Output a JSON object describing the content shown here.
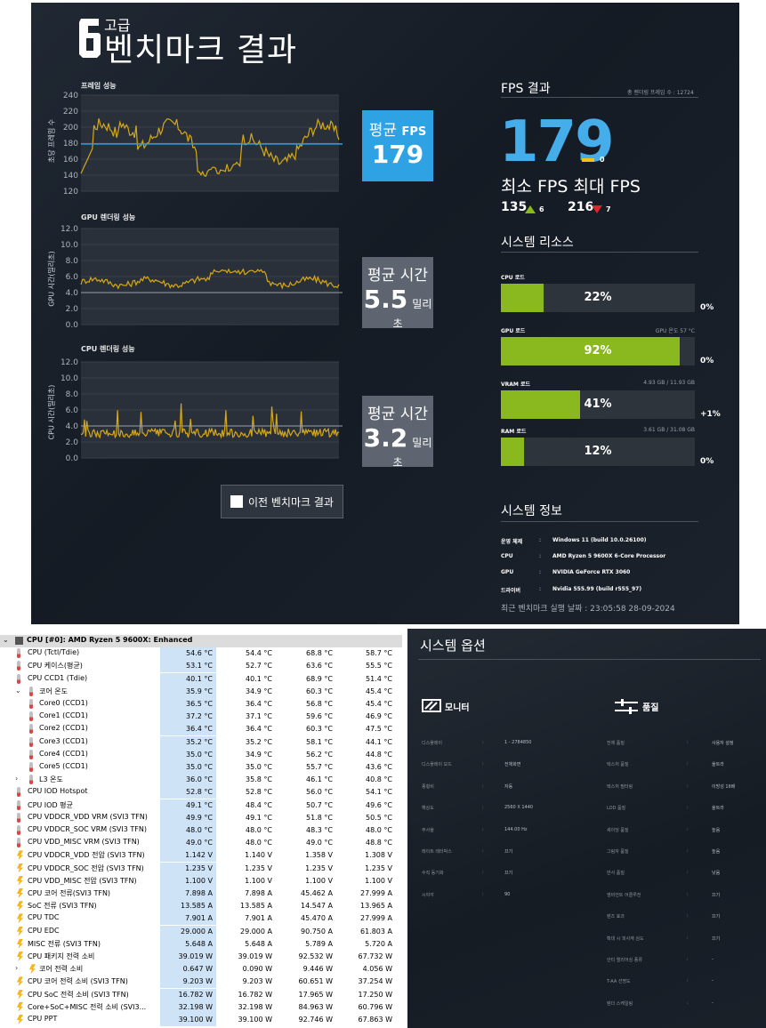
{
  "bench": {
    "tier": "고급",
    "title": "벤치마크 결과",
    "charts": [
      {
        "title": "프레임 성능",
        "ylabel": "초당 프레임 수",
        "ticks": [
          "240",
          "220",
          "200",
          "180",
          "160",
          "140",
          "120"
        ],
        "box_label": "평균",
        "box_label2": "FPS",
        "box_value": "179",
        "box_unit": ""
      },
      {
        "title": "GPU 렌더링 성능",
        "ylabel": "GPU 시간(밀리초)",
        "ticks": [
          "12.0",
          "10.0",
          "8.0",
          "6.0",
          "4.0",
          "2.0",
          "0.0"
        ],
        "box_label": "평균 시간",
        "box_label2": "",
        "box_value": "5.5",
        "box_unit": "밀리초"
      },
      {
        "title": "CPU 렌더링 성능",
        "ylabel": "CPU 시간(밀리초)",
        "ticks": [
          "12.0",
          "10.0",
          "8.0",
          "6.0",
          "4.0",
          "2.0",
          "0.0"
        ],
        "box_label": "평균 시간",
        "box_label2": "",
        "box_value": "3.2",
        "box_unit": "밀리초"
      }
    ],
    "legend": "이전 벤치마크 결과",
    "fps_section": {
      "title": "FPS 결과",
      "total_frames": "총 렌더링 프레임 수 : 12724",
      "avg": "179",
      "avg_delta": "0",
      "minmax_label": "최소 FPS 최대 FPS",
      "min": "135",
      "min_delta": "6",
      "max": "216",
      "max_delta": "7"
    },
    "resources_title": "시스템 리소스",
    "resources": [
      {
        "label": "CPU 로드",
        "extra": "",
        "percent": "22%",
        "fill": 0.22,
        "delta": "0%"
      },
      {
        "label": "GPU 로드",
        "extra": "GPU 온도 57 °C",
        "percent": "92%",
        "fill": 0.92,
        "delta": "0%"
      },
      {
        "label": "VRAM 로드",
        "extra": "4.93 GB / 11.93 GB",
        "percent": "41%",
        "fill": 0.41,
        "delta": "+1%"
      },
      {
        "label": "RAM 로드",
        "extra": "3.61 GB / 31.08 GB",
        "percent": "12%",
        "fill": 0.12,
        "delta": "0%"
      }
    ],
    "info_title": "시스템 정보",
    "info": [
      {
        "key": "운영 체제",
        "value": "Windows 11 (build 10.0.26100)"
      },
      {
        "key": "CPU",
        "value": "AMD Ryzen 5 9600X 6-Core Processor"
      },
      {
        "key": "GPU",
        "value": "NVIDIA GeForce RTX 3060"
      },
      {
        "key": "드라이버",
        "value": "Nvidia 555.99 (build r555_97)"
      }
    ],
    "colon": ":",
    "last_run": "최근 벤치마크 실행 날짜 : 23:05:58 28-09-2024",
    "colors": {
      "fps_blue": "#45aeea",
      "line_yellow": "#d6a817",
      "bar_green": "#8ab81f",
      "avg_line": "#2ba3e0"
    }
  },
  "sensors": {
    "rows": [
      {
        "tw": "⌄",
        "icon": "chip",
        "indent": 0,
        "name": "CPU [#0]: AMD Ryzen 5 9600X: Enhanced",
        "cur": "",
        "min": "",
        "max": "",
        "avg": "",
        "hdr": true
      },
      {
        "tw": "",
        "icon": "therm",
        "indent": 1,
        "name": "CPU (Tctl/Tdie)",
        "cur": "54.6 °C",
        "min": "54.4 °C",
        "max": "68.8 °C",
        "avg": "58.7 °C"
      },
      {
        "tw": "",
        "icon": "therm",
        "indent": 1,
        "name": "CPU 케이스(평균)",
        "cur": "53.1 °C",
        "min": "52.7 °C",
        "max": "63.6 °C",
        "avg": "55.5 °C"
      },
      {
        "tw": "",
        "icon": "therm",
        "indent": 1,
        "name": "CPU CCD1 (Tdie)",
        "cur": "40.1 °C",
        "min": "40.1 °C",
        "max": "68.9 °C",
        "avg": "51.4 °C"
      },
      {
        "tw": "⌄",
        "icon": "therm",
        "indent": 1,
        "name": "코어 온도",
        "cur": "35.9 °C",
        "min": "34.9 °C",
        "max": "60.3 °C",
        "avg": "45.4 °C"
      },
      {
        "tw": "",
        "icon": "therm",
        "indent": 2,
        "name": "Core0 (CCD1)",
        "cur": "36.5 °C",
        "min": "36.4 °C",
        "max": "56.8 °C",
        "avg": "45.4 °C"
      },
      {
        "tw": "",
        "icon": "therm",
        "indent": 2,
        "name": "Core1 (CCD1)",
        "cur": "37.2 °C",
        "min": "37.1 °C",
        "max": "59.6 °C",
        "avg": "46.9 °C"
      },
      {
        "tw": "",
        "icon": "therm",
        "indent": 2,
        "name": "Core2 (CCD1)",
        "cur": "36.4 °C",
        "min": "36.4 °C",
        "max": "60.3 °C",
        "avg": "47.5 °C"
      },
      {
        "tw": "",
        "icon": "therm",
        "indent": 2,
        "name": "Core3 (CCD1)",
        "cur": "35.2 °C",
        "min": "35.2 °C",
        "max": "58.1 °C",
        "avg": "44.1 °C"
      },
      {
        "tw": "",
        "icon": "therm",
        "indent": 2,
        "name": "Core4 (CCD1)",
        "cur": "35.0 °C",
        "min": "34.9 °C",
        "max": "56.2 °C",
        "avg": "44.8 °C"
      },
      {
        "tw": "",
        "icon": "therm",
        "indent": 2,
        "name": "Core5 (CCD1)",
        "cur": "35.0 °C",
        "min": "35.0 °C",
        "max": "55.7 °C",
        "avg": "43.6 °C"
      },
      {
        "tw": "›",
        "icon": "therm",
        "indent": 1,
        "name": "L3 온도",
        "cur": "36.0 °C",
        "min": "35.8 °C",
        "max": "46.1 °C",
        "avg": "40.8 °C"
      },
      {
        "tw": "",
        "icon": "therm",
        "indent": 1,
        "name": "CPU IOD Hotspot",
        "cur": "52.8 °C",
        "min": "52.8 °C",
        "max": "56.0 °C",
        "avg": "54.1 °C"
      },
      {
        "tw": "",
        "icon": "therm",
        "indent": 1,
        "name": "CPU IOD 평균",
        "cur": "49.1 °C",
        "min": "48.4 °C",
        "max": "50.7 °C",
        "avg": "49.6 °C"
      },
      {
        "tw": "",
        "icon": "therm",
        "indent": 1,
        "name": "CPU VDDCR_VDD VRM (SVI3 TFN)",
        "cur": "49.9 °C",
        "min": "49.1 °C",
        "max": "51.8 °C",
        "avg": "50.5 °C"
      },
      {
        "tw": "",
        "icon": "therm",
        "indent": 1,
        "name": "CPU VDDCR_SOC VRM (SVI3 TFN)",
        "cur": "48.0 °C",
        "min": "48.0 °C",
        "max": "48.3 °C",
        "avg": "48.0 °C"
      },
      {
        "tw": "",
        "icon": "therm",
        "indent": 1,
        "name": "CPU VDD_MISC VRM (SVI3 TFN)",
        "cur": "49.0 °C",
        "min": "48.0 °C",
        "max": "49.0 °C",
        "avg": "48.8 °C"
      },
      {
        "tw": "",
        "icon": "bolt",
        "indent": 1,
        "name": "CPU VDDCR_VDD 전압 (SVI3 TFN)",
        "cur": "1.142 V",
        "min": "1.140 V",
        "max": "1.358 V",
        "avg": "1.308 V"
      },
      {
        "tw": "",
        "icon": "bolt",
        "indent": 1,
        "name": "CPU VDDCR_SOC 전압 (SVI3 TFN)",
        "cur": "1.235 V",
        "min": "1.235 V",
        "max": "1.235 V",
        "avg": "1.235 V"
      },
      {
        "tw": "",
        "icon": "bolt",
        "indent": 1,
        "name": "CPU VDD_MISC 전압 (SVI3 TFN)",
        "cur": "1.100 V",
        "min": "1.100 V",
        "max": "1.100 V",
        "avg": "1.100 V"
      },
      {
        "tw": "",
        "icon": "bolt",
        "indent": 1,
        "name": "CPU 코어 전류(SVI3 TFN)",
        "cur": "7.898 A",
        "min": "7.898 A",
        "max": "45.462 A",
        "avg": "27.999 A"
      },
      {
        "tw": "",
        "icon": "bolt",
        "indent": 1,
        "name": "SoC 전류 (SVI3 TFN)",
        "cur": "13.585 A",
        "min": "13.585 A",
        "max": "14.547 A",
        "avg": "13.965 A"
      },
      {
        "tw": "",
        "icon": "bolt",
        "indent": 1,
        "name": "CPU TDC",
        "cur": "7.901 A",
        "min": "7.901 A",
        "max": "45.470 A",
        "avg": "27.999 A"
      },
      {
        "tw": "",
        "icon": "bolt",
        "indent": 1,
        "name": "CPU EDC",
        "cur": "29.000 A",
        "min": "29.000 A",
        "max": "90.750 A",
        "avg": "61.803 A"
      },
      {
        "tw": "",
        "icon": "bolt",
        "indent": 1,
        "name": "MISC 전류 (SVI3 TFN)",
        "cur": "5.648 A",
        "min": "5.648 A",
        "max": "5.789 A",
        "avg": "5.720 A"
      },
      {
        "tw": "",
        "icon": "bolt",
        "indent": 1,
        "name": "CPU 패키지 전력 소비",
        "cur": "39.019 W",
        "min": "39.019 W",
        "max": "92.532 W",
        "avg": "67.732 W"
      },
      {
        "tw": "›",
        "icon": "bolt",
        "indent": 1,
        "name": "코어 전력 소비",
        "cur": "0.647 W",
        "min": "0.090 W",
        "max": "9.446 W",
        "avg": "4.056 W"
      },
      {
        "tw": "",
        "icon": "bolt",
        "indent": 1,
        "name": "CPU 코어 전력 소비 (SVI3 TFN)",
        "cur": "9.203 W",
        "min": "9.203 W",
        "max": "60.651 W",
        "avg": "37.254 W"
      },
      {
        "tw": "",
        "icon": "bolt",
        "indent": 1,
        "name": "CPU SoC 전력 소비 (SVI3 TFN)",
        "cur": "16.782 W",
        "min": "16.782 W",
        "max": "17.965 W",
        "avg": "17.250 W"
      },
      {
        "tw": "",
        "icon": "bolt",
        "indent": 1,
        "name": "Core+SoC+MISC 전력 소비 (SVI3...",
        "cur": "32.198 W",
        "min": "32.198 W",
        "max": "84.963 W",
        "avg": "60.796 W"
      },
      {
        "tw": "",
        "icon": "bolt",
        "indent": 1,
        "name": "CPU PPT",
        "cur": "39.100 W",
        "min": "39.100 W",
        "max": "92.746 W",
        "avg": "67.863 W"
      }
    ]
  },
  "options": {
    "title": "시스템 옵션",
    "monitor_title": "모니터",
    "quality_title": "품질",
    "colon": ":",
    "monitor": [
      {
        "key": "디스플레이",
        "value": "1 - 2784850"
      },
      {
        "key": "디스플레이 모드",
        "value": "전체화면"
      },
      {
        "key": "종횡비",
        "value": "자동"
      },
      {
        "key": "해상도",
        "value": "2560 X 1440"
      },
      {
        "key": "주사율",
        "value": "144.00 Hz"
      },
      {
        "key": "레이트 레터박스",
        "value": "끄기"
      },
      {
        "key": "수직 동기화",
        "value": "끄기"
      },
      {
        "key": "시야각",
        "value": "90"
      }
    ],
    "quality": [
      {
        "key": "전체 품질",
        "value": "사용자 설정"
      },
      {
        "key": "텍스처 품질",
        "value": "울트라"
      },
      {
        "key": "텍스처 필터링",
        "value": "이방성 16배"
      },
      {
        "key": "LOD 품질",
        "value": "울트라"
      },
      {
        "key": "셰이딩 품질",
        "value": "높음"
      },
      {
        "key": "그림자 품질",
        "value": "높음"
      },
      {
        "key": "반사 품질",
        "value": "낮음"
      },
      {
        "key": "앰비언트 어클루전",
        "value": "끄기"
      },
      {
        "key": "렌즈 효과",
        "value": "끄기"
      },
      {
        "key": "확대 시 피사계 심도",
        "value": "끄기"
      },
      {
        "key": "안티 앨리어싱 종류",
        "value": "-"
      },
      {
        "key": "T-AA 선명도",
        "value": "-"
      },
      {
        "key": "렌더 스케일링",
        "value": "-"
      }
    ]
  }
}
